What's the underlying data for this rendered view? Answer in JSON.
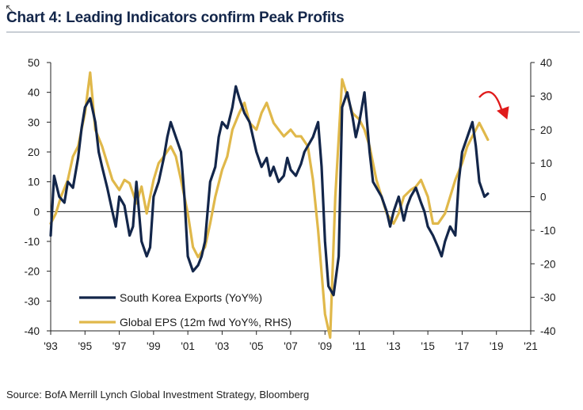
{
  "header": {
    "title": "Chart 4: Leading Indicators confirm Peak Profits"
  },
  "footer": {
    "source": "Source: BofA Merrill Lynch Global Investment Strategy, Bloomberg"
  },
  "chart_data": {
    "type": "line",
    "title": "Chart 4: Leading Indicators confirm Peak Profits",
    "x_range": [
      1993,
      2021
    ],
    "x_tick_labels": [
      "'93",
      "'95",
      "'97",
      "'99",
      "'01",
      "'03",
      "'05",
      "'07",
      "'09",
      "'11",
      "'13",
      "'15",
      "'17",
      "'19",
      "'21"
    ],
    "x_ticks": [
      1993,
      1995,
      1997,
      1999,
      2001,
      2003,
      2005,
      2007,
      2009,
      2011,
      2013,
      2015,
      2017,
      2019,
      2021
    ],
    "y_left": {
      "range": [
        -40,
        50
      ],
      "ticks": [
        -40,
        -30,
        -20,
        -10,
        0,
        10,
        20,
        30,
        40,
        50
      ]
    },
    "y_right": {
      "range": [
        -40,
        40
      ],
      "ticks": [
        -40,
        -30,
        -20,
        -10,
        0,
        10,
        20,
        30,
        40
      ]
    },
    "grid": false,
    "legend": "bottom-left",
    "annotation": "red downward curved arrow near latest values",
    "series": [
      {
        "name": "South Korea Exports (YoY%)",
        "axis": "left",
        "color": "#13264a",
        "x": [
          1993.0,
          1993.2,
          1993.5,
          1993.8,
          1994.0,
          1994.3,
          1994.6,
          1994.8,
          1995.0,
          1995.3,
          1995.6,
          1995.8,
          1996.0,
          1996.3,
          1996.6,
          1996.8,
          1997.0,
          1997.3,
          1997.6,
          1997.8,
          1998.0,
          1998.3,
          1998.6,
          1998.8,
          1999.0,
          1999.3,
          1999.6,
          1999.8,
          2000.0,
          2000.3,
          2000.6,
          2000.8,
          2001.0,
          2001.3,
          2001.6,
          2001.8,
          2002.0,
          2002.3,
          2002.6,
          2002.8,
          2003.0,
          2003.3,
          2003.6,
          2003.8,
          2004.0,
          2004.3,
          2004.6,
          2004.8,
          2005.0,
          2005.3,
          2005.6,
          2005.8,
          2006.0,
          2006.3,
          2006.6,
          2006.8,
          2007.0,
          2007.3,
          2007.6,
          2007.8,
          2008.0,
          2008.3,
          2008.6,
          2008.8,
          2009.0,
          2009.2,
          2009.5,
          2009.8,
          2010.0,
          2010.3,
          2010.6,
          2010.8,
          2011.0,
          2011.3,
          2011.6,
          2011.8,
          2012.0,
          2012.3,
          2012.6,
          2012.8,
          2013.0,
          2013.3,
          2013.6,
          2013.8,
          2014.0,
          2014.3,
          2014.6,
          2014.8,
          2015.0,
          2015.3,
          2015.6,
          2015.8,
          2016.0,
          2016.3,
          2016.6,
          2016.8,
          2017.0,
          2017.3,
          2017.6,
          2017.8,
          2018.0,
          2018.3,
          2018.5
        ],
        "y": [
          -8,
          12,
          5,
          3,
          10,
          8,
          18,
          28,
          35,
          38,
          30,
          20,
          15,
          8,
          0,
          -5,
          5,
          2,
          -8,
          -5,
          10,
          -10,
          -15,
          -12,
          5,
          10,
          18,
          25,
          30,
          25,
          20,
          5,
          -15,
          -20,
          -18,
          -15,
          -10,
          10,
          15,
          25,
          30,
          28,
          35,
          42,
          38,
          33,
          30,
          25,
          20,
          15,
          18,
          12,
          15,
          10,
          12,
          18,
          14,
          12,
          16,
          20,
          22,
          25,
          30,
          15,
          -10,
          -25,
          -28,
          -15,
          35,
          40,
          32,
          25,
          30,
          40,
          20,
          10,
          8,
          5,
          0,
          -5,
          0,
          5,
          -3,
          2,
          5,
          8,
          3,
          0,
          -5,
          -8,
          -12,
          -15,
          -10,
          -5,
          -8,
          10,
          20,
          25,
          30,
          22,
          10,
          5,
          6
        ]
      },
      {
        "name": "Global EPS (12m fwd YoY%, RHS)",
        "axis": "right",
        "color": "#e0b84a",
        "x": [
          1993.0,
          1993.3,
          1993.6,
          1994.0,
          1994.3,
          1994.6,
          1995.0,
          1995.3,
          1995.6,
          1996.0,
          1996.3,
          1996.6,
          1997.0,
          1997.3,
          1997.6,
          1998.0,
          1998.3,
          1998.6,
          1999.0,
          1999.3,
          1999.6,
          2000.0,
          2000.3,
          2000.6,
          2001.0,
          2001.3,
          2001.6,
          2002.0,
          2002.3,
          2002.6,
          2003.0,
          2003.3,
          2003.6,
          2004.0,
          2004.3,
          2004.6,
          2005.0,
          2005.3,
          2005.6,
          2006.0,
          2006.3,
          2006.6,
          2007.0,
          2007.3,
          2007.6,
          2008.0,
          2008.3,
          2008.6,
          2009.0,
          2009.3,
          2009.6,
          2010.0,
          2010.3,
          2010.6,
          2011.0,
          2011.3,
          2011.6,
          2012.0,
          2012.3,
          2012.6,
          2013.0,
          2013.3,
          2013.6,
          2014.0,
          2014.3,
          2014.6,
          2015.0,
          2015.3,
          2015.6,
          2016.0,
          2016.3,
          2016.6,
          2017.0,
          2017.3,
          2017.6,
          2018.0,
          2018.3,
          2018.5
        ],
        "y": [
          -8,
          -5,
          0,
          5,
          12,
          15,
          25,
          37,
          20,
          15,
          10,
          5,
          2,
          5,
          4,
          -2,
          3,
          -5,
          5,
          10,
          12,
          15,
          12,
          5,
          -5,
          -15,
          -18,
          -15,
          -8,
          0,
          8,
          12,
          20,
          25,
          28,
          22,
          20,
          25,
          28,
          22,
          20,
          18,
          20,
          18,
          18,
          15,
          5,
          -10,
          -35,
          -42,
          0,
          35,
          30,
          25,
          23,
          20,
          15,
          5,
          0,
          -5,
          -8,
          -5,
          0,
          2,
          3,
          5,
          0,
          -8,
          -8,
          -5,
          0,
          5,
          10,
          15,
          18,
          22,
          19,
          17
        ]
      }
    ]
  }
}
